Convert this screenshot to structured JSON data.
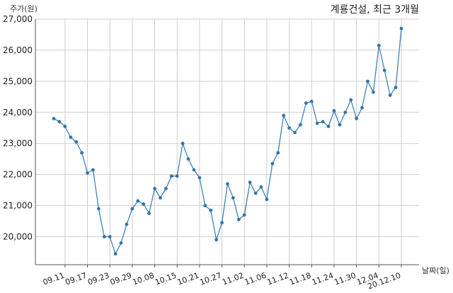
{
  "chart_data": {
    "type": "line",
    "title": "계룡건설, 최근 3개월",
    "ylabel": "주가(원)",
    "xlabel": "날짜(일)",
    "ylim": [
      19100,
      27000
    ],
    "yticks": [
      20000,
      21000,
      22000,
      23000,
      24000,
      25000,
      26000,
      27000
    ],
    "ytick_labels": [
      "20,000",
      "21,000",
      "22,000",
      "23,000",
      "24,000",
      "25,000",
      "26,000",
      "27,000"
    ],
    "xtick_labels": [
      "09.11",
      "09.17",
      "09.23",
      "09.29",
      "10.08",
      "10.15",
      "10.21",
      "10.27",
      "11.02",
      "11.06",
      "11.12",
      "11.18",
      "11.24",
      "11.30",
      "12.04",
      "20.12.10"
    ],
    "xtick_index": [
      2,
      6,
      10,
      14,
      18,
      22,
      26,
      30,
      34,
      38,
      42,
      46,
      50,
      54,
      58,
      62
    ],
    "grid": true,
    "series": [
      {
        "color": "#3f83b6",
        "values": [
          23800,
          23700,
          23550,
          23200,
          23050,
          22700,
          22050,
          22150,
          20900,
          20000,
          20000,
          19450,
          19800,
          20400,
          20900,
          21150,
          21050,
          20750,
          21550,
          21250,
          21550,
          21950,
          21950,
          23000,
          22500,
          22150,
          21900,
          21000,
          20850,
          19900,
          20450,
          21700,
          21250,
          20550,
          20700,
          21750,
          21400,
          21600,
          21200,
          22350,
          22700,
          23900,
          23500,
          23350,
          23600,
          24300,
          24350,
          23650,
          23700,
          23550,
          24050,
          23600,
          24000,
          24400,
          23800,
          24150,
          25000,
          24650,
          26150,
          25350,
          24550,
          24800,
          26700
        ]
      }
    ]
  }
}
